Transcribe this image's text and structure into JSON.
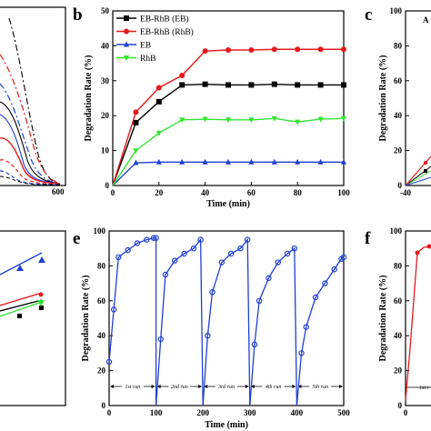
{
  "panels": {
    "a": {
      "tick_600": "600"
    },
    "b": {
      "letter": "b",
      "xlabel": "Time (min)",
      "ylabel": "Degradation Rate (%)",
      "xticks": [
        "0",
        "20",
        "40",
        "60",
        "80",
        "100"
      ],
      "yticks": [
        "0",
        "10",
        "20",
        "30",
        "40",
        "50"
      ]
    },
    "c": {
      "letter": "c",
      "ylabel": "Degradation Rate (%)",
      "yticks": [
        "0",
        "20",
        "40",
        "60",
        "80",
        "100"
      ],
      "xtick": "-40",
      "partial_text": "A"
    },
    "d": {},
    "e": {
      "letter": "e",
      "xlabel": "Time (min)",
      "ylabel": "Degradation Rate (%)",
      "xticks": [
        "0",
        "100",
        "200",
        "300",
        "400",
        "500"
      ],
      "yticks": [
        "0",
        "20",
        "40",
        "60",
        "80",
        "100"
      ],
      "runs": [
        "1st run",
        "2nd run",
        "3rd run",
        "4th run",
        "5th run"
      ]
    },
    "f": {
      "letter": "f",
      "ylabel": "Degradation Rate (%)",
      "yticks": [
        "0",
        "20",
        "40",
        "60",
        "80",
        "100"
      ],
      "xtick": "0",
      "partial_run": "1st r"
    }
  },
  "colors": {
    "black": "#000000",
    "red": "#e41a1c",
    "blue": "#1f3fd6",
    "green": "#33e533"
  },
  "chart_data": [
    {
      "panel": "b",
      "type": "line",
      "xlabel": "Time (min)",
      "ylabel": "Degradation Rate (%)",
      "xlim": [
        0,
        100
      ],
      "ylim": [
        0,
        50
      ],
      "legend_position": "top-left",
      "series": [
        {
          "name": "EB-RhB (EB)",
          "color": "#000000",
          "marker": "square",
          "x": [
            0,
            10,
            20,
            30,
            40,
            50,
            60,
            70,
            80,
            90,
            100
          ],
          "y": [
            0,
            18,
            24,
            28.8,
            29,
            28.8,
            28.8,
            29,
            28.8,
            28.8,
            28.8
          ]
        },
        {
          "name": "EB-RhB (RhB)",
          "color": "#e41a1c",
          "marker": "circle",
          "x": [
            0,
            10,
            20,
            30,
            40,
            50,
            60,
            70,
            80,
            90,
            100
          ],
          "y": [
            0,
            21,
            28,
            31.5,
            38.5,
            38.8,
            38.8,
            39,
            39,
            39,
            39
          ]
        },
        {
          "name": "EB",
          "color": "#1f3fd6",
          "marker": "triangle-up",
          "x": [
            0,
            10,
            20,
            30,
            40,
            50,
            60,
            70,
            80,
            90,
            100
          ],
          "y": [
            0,
            6.5,
            6.7,
            6.7,
            6.7,
            6.7,
            6.7,
            6.7,
            6.7,
            6.7,
            6.7
          ]
        },
        {
          "name": "RhB",
          "color": "#33e533",
          "marker": "triangle-down",
          "x": [
            0,
            10,
            20,
            30,
            40,
            50,
            60,
            70,
            80,
            90,
            100
          ],
          "y": [
            0,
            10,
            15,
            18.8,
            19,
            18.8,
            18.8,
            19.2,
            18.2,
            19,
            19.2
          ]
        }
      ]
    },
    {
      "panel": "e",
      "type": "line",
      "xlabel": "Time (min)",
      "ylabel": "Degradation Rate (%)",
      "xlim": [
        0,
        500
      ],
      "ylim": [
        0,
        100
      ],
      "series": [
        {
          "color": "#1f3fd6",
          "marker": "circle",
          "x": [
            0,
            10,
            20,
            40,
            60,
            80,
            95,
            100,
            100,
            110,
            120,
            140,
            160,
            180,
            195,
            200,
            200,
            210,
            220,
            240,
            260,
            280,
            295,
            300,
            300,
            310,
            320,
            340,
            360,
            380,
            395,
            400,
            400,
            410,
            420,
            440,
            460,
            480,
            495,
            500
          ],
          "y": [
            25,
            55,
            85,
            89,
            93,
            95,
            96,
            96,
            0,
            38,
            75,
            83,
            87,
            90,
            95,
            0,
            0,
            40,
            65,
            82,
            87,
            90,
            95,
            0,
            0,
            35,
            60,
            73,
            82,
            87,
            90,
            0,
            0,
            30,
            45,
            62,
            70,
            78,
            84,
            85
          ]
        }
      ]
    }
  ]
}
